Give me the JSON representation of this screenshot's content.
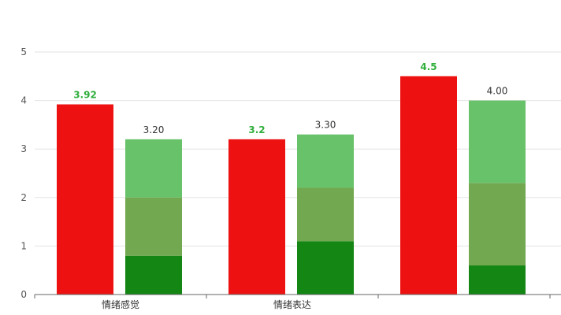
{
  "chart_data": {
    "type": "bar",
    "categories": [
      "情绪感觉",
      "情绪表达",
      ""
    ],
    "ylim": [
      0,
      5
    ],
    "yticks": [
      0,
      1,
      2,
      3,
      4,
      5
    ],
    "grid": true,
    "series": [
      {
        "color": "#ee1111",
        "values": [
          3.92,
          3.2,
          4.5
        ],
        "value_labels": [
          "3.92",
          "3.2",
          "4.5"
        ]
      }
    ],
    "stacked_series": [
      {
        "color": "#138613",
        "values": [
          0.8,
          1.1,
          0.6
        ]
      },
      {
        "color": "#72a84f",
        "values": [
          1.2,
          1.1,
          1.7
        ]
      },
      {
        "color": "#68c26a",
        "values": [
          1.2,
          1.1,
          1.7
        ]
      }
    ],
    "stack_totals": [
      "3.20",
      "3.30",
      "4.00"
    ],
    "label_colors": {
      "red_bar_label": "#2fae3b",
      "stack_label": "#333333"
    }
  }
}
